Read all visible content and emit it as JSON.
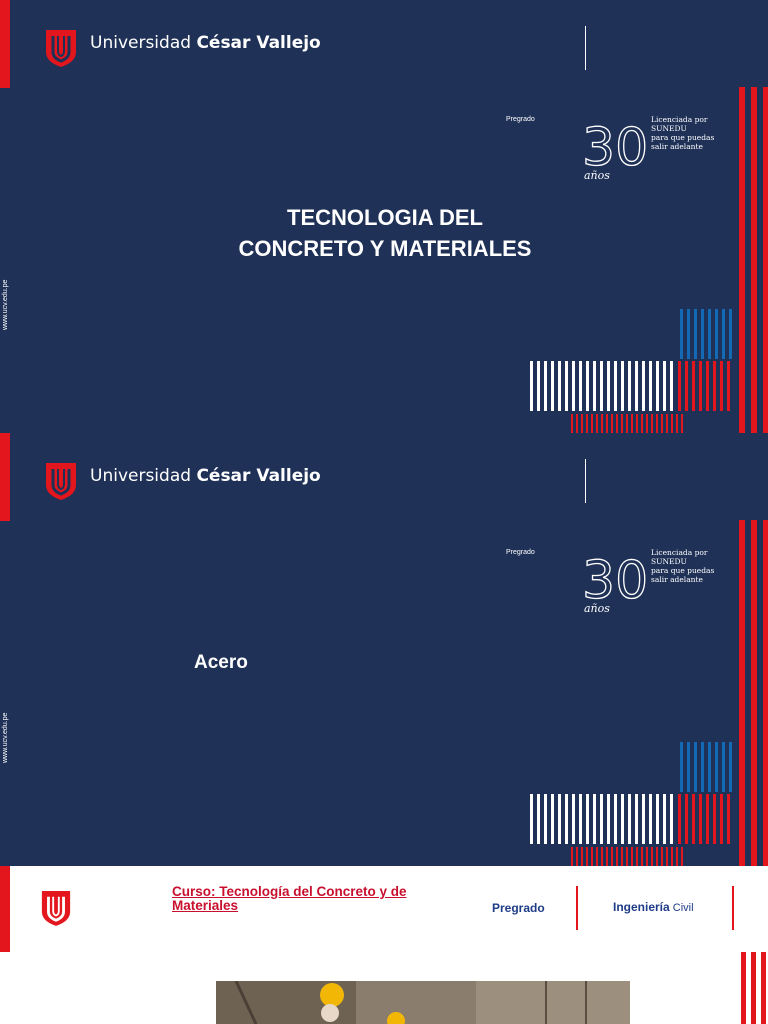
{
  "brand": {
    "name_regular": "Universidad ",
    "name_bold": "César Vallejo"
  },
  "badge": {
    "level": "Pregrado",
    "number": "30",
    "years": "años",
    "license": "Licenciada por\nSUNEDU\npara que puedas\nsalir adelante"
  },
  "website": "www.ucv.edu.pe",
  "slide1": {
    "title_line1": "TECNOLOGIA DEL",
    "title_line2": "CONCRETO Y MATERIALES"
  },
  "slide2": {
    "title": "Acero"
  },
  "slide3": {
    "course": "Curso: Tecnología del Concreto y de Materiales",
    "level": "Pregrado",
    "career_bold": "Ingeniería",
    "career_regular": " Civil"
  },
  "colors": {
    "navy": "#1f3157",
    "red": "#e3161e",
    "blue": "#1469b4",
    "white": "#ffffff"
  },
  "icons": [
    "ucv-shield-icon",
    "construction-photo"
  ]
}
